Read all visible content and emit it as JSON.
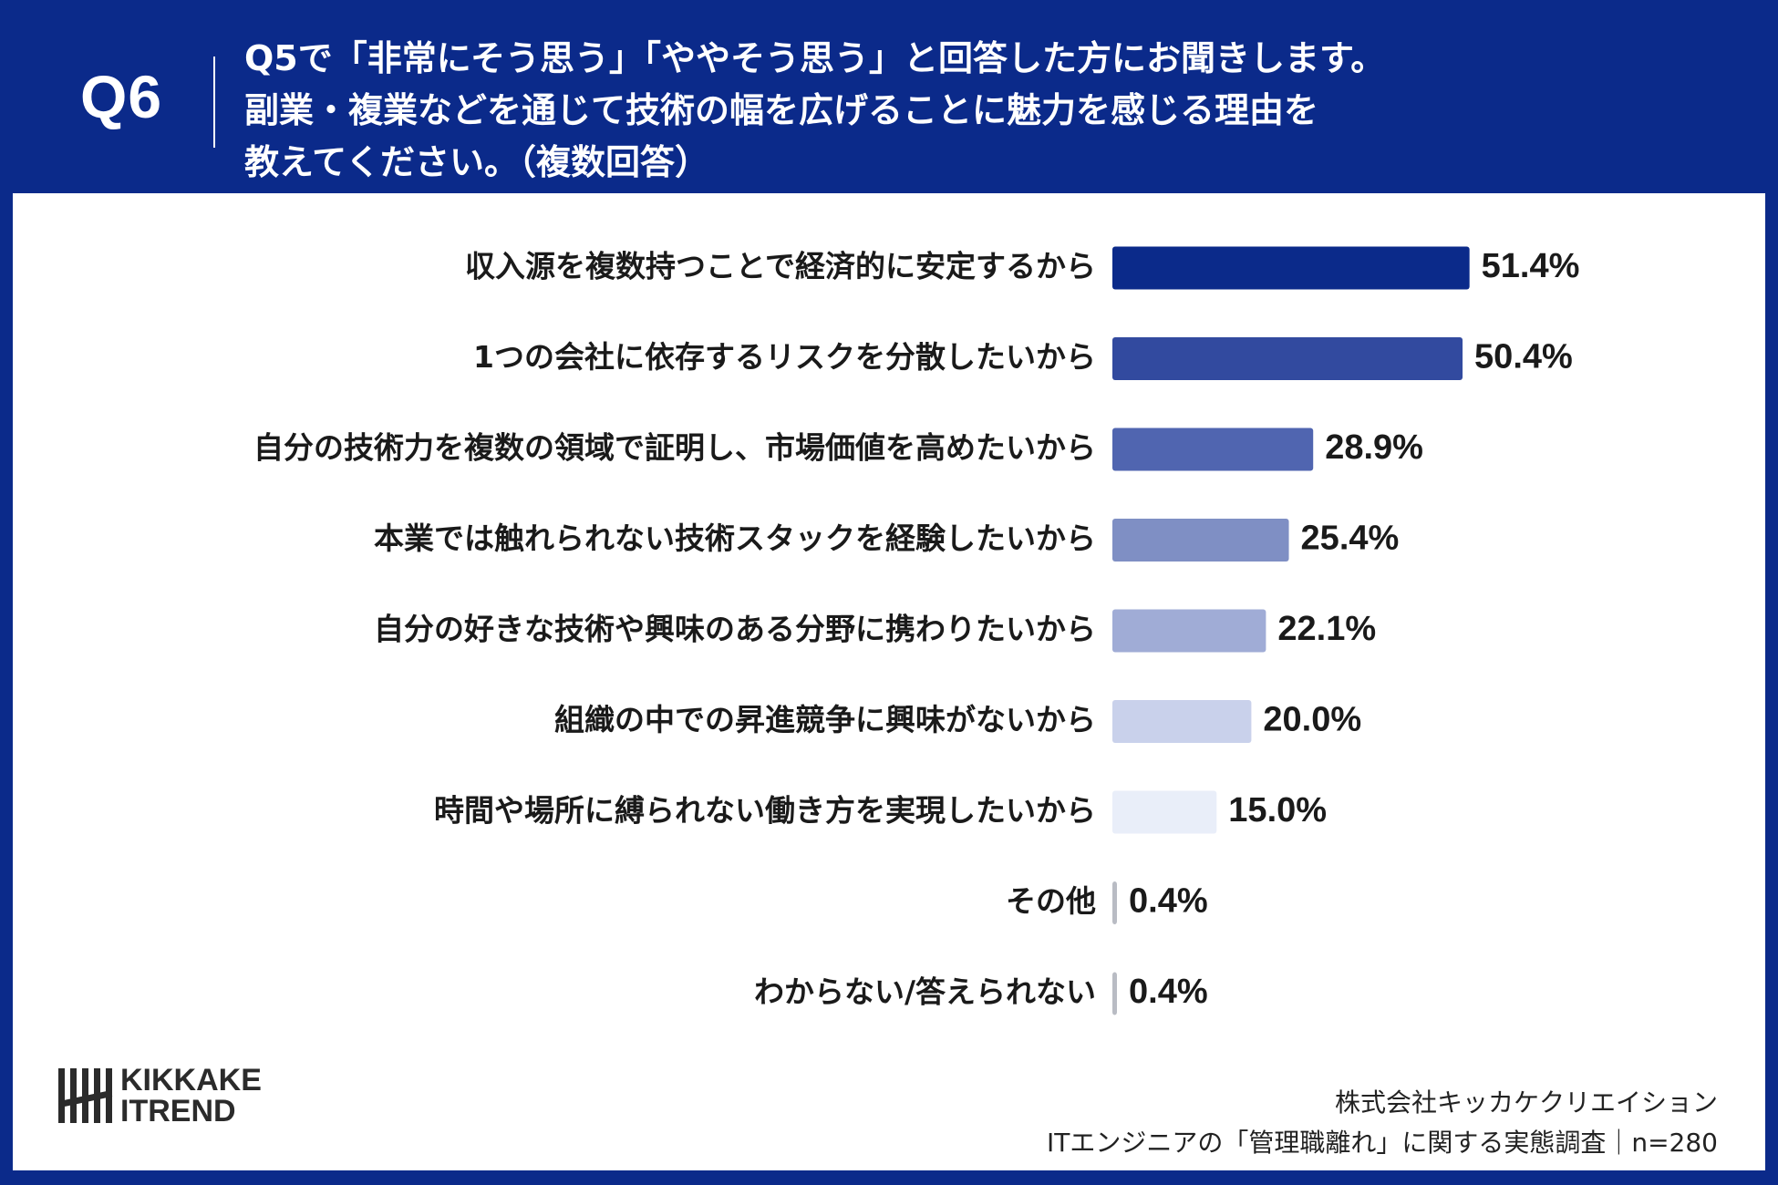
{
  "header": {
    "question_number": "Q6",
    "question_lines": [
      "Q5で「非常にそう思う」「ややそう思う」と回答した方にお聞きします。",
      "副業・複業などを通じて技術の幅を広げることに魅力を感じる理由を",
      "教えてください。（複数回答）"
    ]
  },
  "chart_data": {
    "type": "bar",
    "orientation": "horizontal",
    "categories": [
      "収入源を複数持つことで経済的に安定するから",
      "1つの会社に依存するリスクを分散したいから",
      "自分の技術力を複数の領域で証明し、市場価値を高めたいから",
      "本業では触れられない技術スタックを経験したいから",
      "自分の好きな技術や興味のある分野に携わりたいから",
      "組織の中での昇進競争に興味がないから",
      "時間や場所に縛られない働き方を実現したいから",
      "その他",
      "わからない/答えられない"
    ],
    "values": [
      51.4,
      50.4,
      28.9,
      25.4,
      22.1,
      20.0,
      15.0,
      0.4,
      0.4
    ],
    "value_labels": [
      "51.4%",
      "50.4%",
      "28.9%",
      "25.4%",
      "22.1%",
      "20.0%",
      "15.0%",
      "0.4%",
      "0.4%"
    ],
    "bar_colors": [
      "#0b2a8a",
      "#324a9f",
      "#5065b0",
      "#7f8fc4",
      "#a0acd6",
      "#c9d1eb",
      "#e9eef9",
      "#b9bcc4",
      "#b9bcc4"
    ],
    "xlim": [
      0,
      100
    ],
    "grid": false,
    "legend": "none"
  },
  "logo": {
    "line1": "KIKKAKE",
    "line2": "ITREND"
  },
  "footer": {
    "company": "株式会社キッカケクリエイション",
    "survey": "ITエンジニアの「管理職離れ」に関する実態調査｜n=280"
  },
  "colors": {
    "header_bg": "#0b2a8a",
    "panel_bg": "#ffffff",
    "text": "#1a1a1a",
    "logo": "#2b2b2b"
  }
}
